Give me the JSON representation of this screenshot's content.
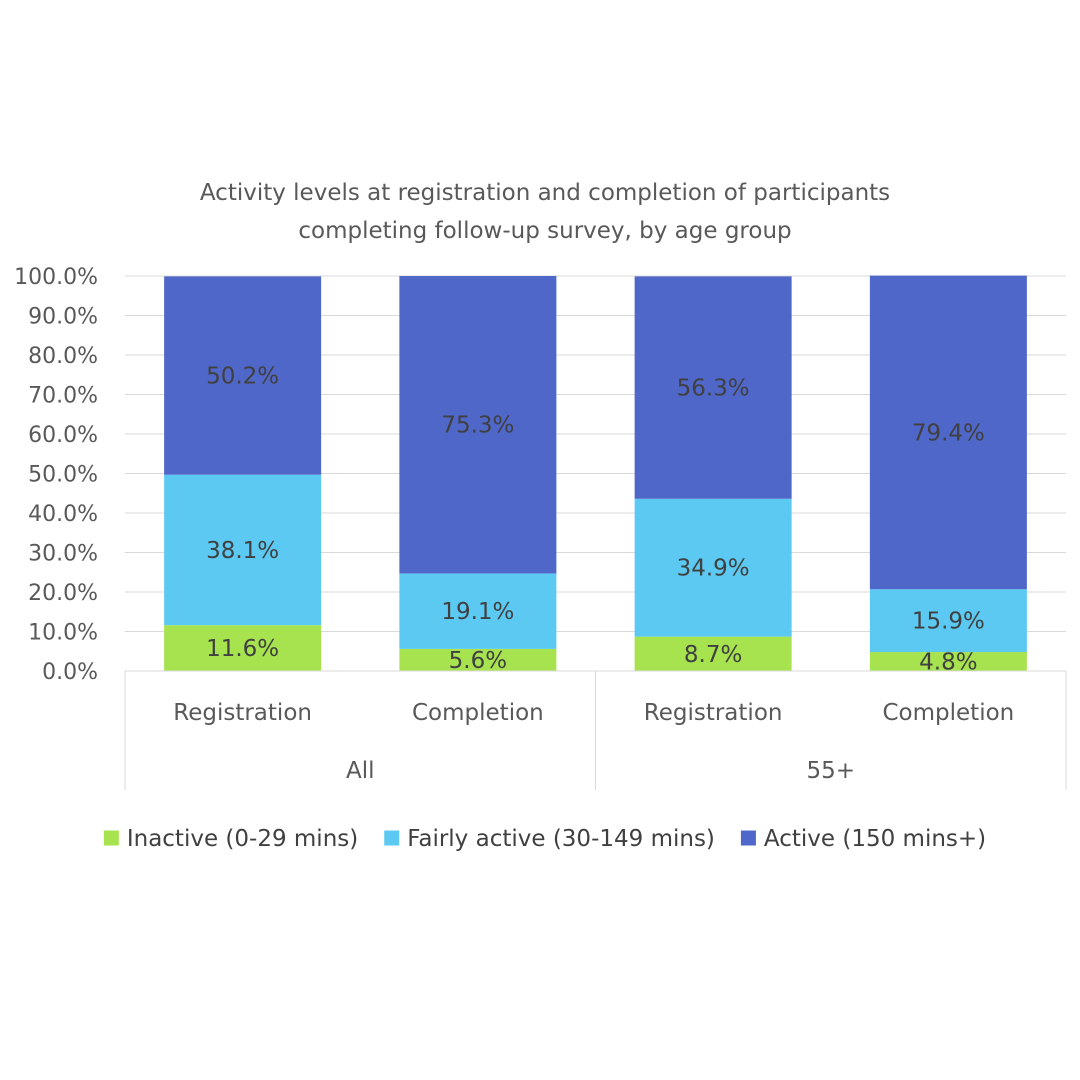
{
  "chart_data": {
    "type": "bar",
    "stacked": true,
    "title": "Activity levels at registration and completion of participants completing follow-up survey, by age group",
    "title_lines": [
      "Activity levels at registration and completion of participants",
      "completing follow-up survey, by age group"
    ],
    "categories": [
      "Registration",
      "Completion",
      "Registration",
      "Completion"
    ],
    "groups": [
      {
        "label": "All",
        "categories": [
          0,
          1
        ]
      },
      {
        "label": "55+",
        "categories": [
          2,
          3
        ]
      }
    ],
    "series": [
      {
        "name": "Inactive (0-29 mins)",
        "color": "#a6e34f",
        "values": [
          11.6,
          5.6,
          8.7,
          4.8
        ],
        "labels": [
          "11.6%",
          "5.6%",
          "8.7%",
          "4.8%"
        ]
      },
      {
        "name": "Fairly active (30-149 mins)",
        "color": "#5bc9f2",
        "values": [
          38.1,
          19.1,
          34.9,
          15.9
        ],
        "labels": [
          "38.1%",
          "19.1%",
          "34.9%",
          "15.9%"
        ]
      },
      {
        "name": "Active (150 mins+)",
        "color": "#4f67c8",
        "values": [
          50.2,
          75.3,
          56.3,
          79.4
        ],
        "labels": [
          "50.2%",
          "75.3%",
          "56.3%",
          "79.4%"
        ]
      }
    ],
    "ylim": [
      0,
      100
    ],
    "yticks": [
      "0.0%",
      "10.0%",
      "20.0%",
      "30.0%",
      "40.0%",
      "50.0%",
      "60.0%",
      "70.0%",
      "80.0%",
      "90.0%",
      "100.0%"
    ],
    "xlabel": "",
    "ylabel": "",
    "grid": true,
    "legend_position": "bottom"
  }
}
